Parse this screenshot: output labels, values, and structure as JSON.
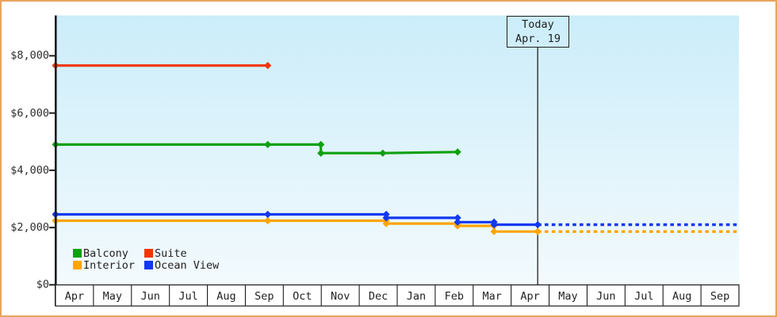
{
  "colors": {
    "frame_border": "#e8a55e",
    "axis": "#1d1d1d",
    "text": "#222222",
    "plot_bg_top": "#cbedfa",
    "plot_bg_bottom": "#f3fafd",
    "balcony": "#0fa00f",
    "suite": "#f23505",
    "interior": "#ffa502",
    "ocean_view": "#1238f0"
  },
  "today_box": {
    "line1": "Today",
    "line2": "Apr. 19"
  },
  "chart_data": {
    "type": "line",
    "title": "",
    "xlabel": "",
    "ylabel": "",
    "grid": false,
    "legend_position": "bottom-left inside plot",
    "y_ticks": [
      {
        "value": 0,
        "label": "$0"
      },
      {
        "value": 2000,
        "label": "$2,000"
      },
      {
        "value": 4000,
        "label": "$4,000"
      },
      {
        "value": 6000,
        "label": "$6,000"
      },
      {
        "value": 8000,
        "label": "$8,000"
      }
    ],
    "ylim": [
      0,
      9400
    ],
    "x_months": [
      "Apr",
      "May",
      "Jun",
      "Jul",
      "Aug",
      "Sep",
      "Oct",
      "Nov",
      "Dec",
      "Jan",
      "Feb",
      "Mar",
      "Apr",
      "May",
      "Jun",
      "Jul",
      "Aug",
      "Sep"
    ],
    "today_marker": {
      "label": "Today",
      "date": "Apr. 19",
      "month_index": 12.7
    },
    "legend": [
      {
        "name": "Balcony",
        "color_key": "balcony"
      },
      {
        "name": "Suite",
        "color_key": "suite"
      },
      {
        "name": "Interior",
        "color_key": "interior"
      },
      {
        "name": "Ocean View",
        "color_key": "ocean_view"
      }
    ],
    "series": [
      {
        "name": "Interior",
        "color_key": "interior",
        "points": [
          [
            0,
            2240
          ],
          [
            5.59,
            2240
          ],
          [
            8.71,
            2240
          ],
          [
            8.71,
            2140
          ],
          [
            10.59,
            2140
          ],
          [
            10.59,
            2060
          ],
          [
            11.55,
            2060
          ],
          [
            11.55,
            1860
          ],
          [
            12.7,
            1860
          ]
        ],
        "projection": [
          [
            12.7,
            1860
          ],
          [
            18,
            1860
          ]
        ]
      },
      {
        "name": "Ocean View",
        "color_key": "ocean_view",
        "points": [
          [
            0,
            2460
          ],
          [
            5.59,
            2460
          ],
          [
            8.71,
            2460
          ],
          [
            8.71,
            2340
          ],
          [
            10.59,
            2340
          ],
          [
            10.59,
            2190
          ],
          [
            11.55,
            2190
          ],
          [
            11.55,
            2100
          ],
          [
            12.7,
            2100
          ]
        ],
        "projection": [
          [
            12.7,
            2100
          ],
          [
            18,
            2100
          ]
        ]
      },
      {
        "name": "Balcony",
        "color_key": "balcony",
        "points": [
          [
            0,
            4900
          ],
          [
            5.59,
            4900
          ],
          [
            6.99,
            4900
          ],
          [
            6.99,
            4600
          ],
          [
            8.62,
            4600
          ],
          [
            10.59,
            4640
          ]
        ],
        "projection": []
      },
      {
        "name": "Suite",
        "color_key": "suite",
        "points": [
          [
            0,
            7660
          ],
          [
            5.59,
            7660
          ]
        ],
        "projection": []
      }
    ]
  }
}
